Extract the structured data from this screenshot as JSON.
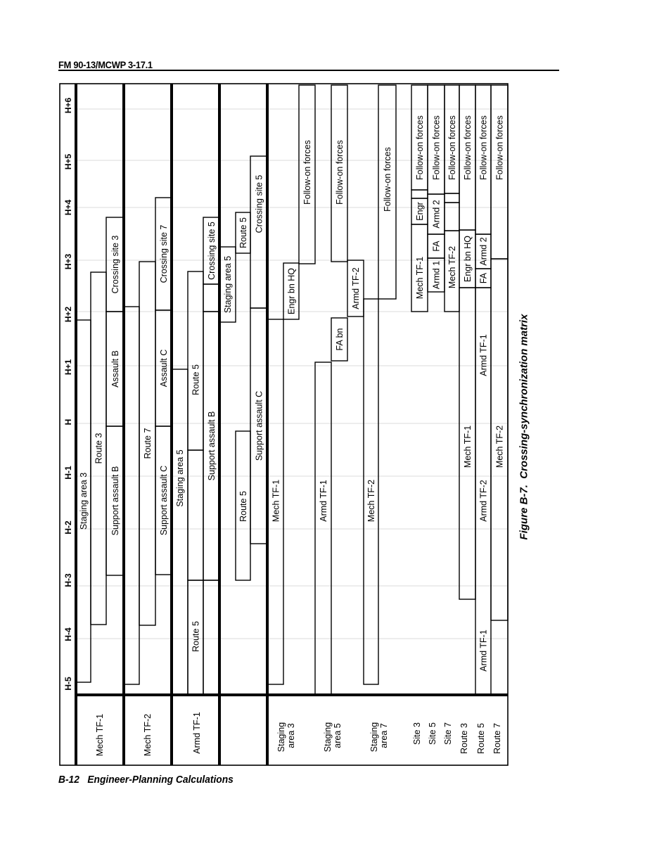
{
  "page_header": "FM 90-13/MCWP 3-17.1",
  "footer": {
    "page": "B-12",
    "title": "Engineer-Planning Calculations"
  },
  "figure_caption": "Figure B-7.  Crossing-synchronization matrix",
  "time_axis": [
    "H-5",
    "H-4",
    "H-3",
    "H-2",
    "H-1",
    "H",
    "H+1",
    "H+2",
    "H+3",
    "H+4",
    "H+5",
    "H+6"
  ],
  "row_headers": {
    "mech_tf1": "Mech  TF-1",
    "mech_tf2": "Mech TF-2",
    "armd_tf1": "Armd TF-1",
    "staging_area_3": [
      "Staging",
      "area 3"
    ],
    "staging_area_5": [
      "Staging",
      "area 5"
    ],
    "staging_area_7": [
      "Staging",
      "area 7"
    ],
    "site_3": "Site 3",
    "site_5": "Site 5",
    "site_7": "Site 7",
    "route_3": "Route 3",
    "route_5": "Route 5",
    "route_7": "Route 7"
  },
  "matrix": {
    "mech_tf1": [
      "Staging area 3",
      "Route 3",
      "Support assault B",
      "Assault B",
      "Crossing site 3"
    ],
    "mech_tf2": [
      "Route 7",
      "Support assault C",
      "Assault C",
      "Crossing site 7"
    ],
    "armd_tf1": [
      "Route 5",
      "Staging area 5",
      "Support assault B",
      "Route 5",
      "Crossing site 5"
    ],
    "unlabeled_group": [
      "Route 5",
      "Support assault C",
      "Staging area 5",
      "Route 5",
      "Crossing site 5"
    ],
    "staging_area_3": [
      "Mech  TF-1",
      "Engr bn HQ",
      "Follow-on forces"
    ],
    "staging_area_5": [
      "Armd  TF-1",
      "FA bn",
      "Armd TF-2",
      "Follow-on forces"
    ],
    "staging_area_7": [
      "Mech TF-2",
      "Follow-on forces"
    ],
    "site_3": [
      "Mech  TF-1",
      "Engr",
      "Follow-on forces"
    ],
    "site_5": [
      "Armd 1",
      "FA",
      "Armd 2",
      "Follow-on forces"
    ],
    "site_7": [
      "Mech TF-2",
      "Follow-on forces"
    ],
    "route_3": [
      "Mech TF-1",
      "Engr bn HQ",
      "Follow-on forces"
    ],
    "route_5": [
      "Armd  TF-1",
      "Armd  TF-2",
      "Armd  TF-1",
      "FA",
      "Armd 2",
      "Follow-on forces"
    ],
    "route_7": [
      "Mech TF-2",
      "Follow-on forces"
    ]
  }
}
